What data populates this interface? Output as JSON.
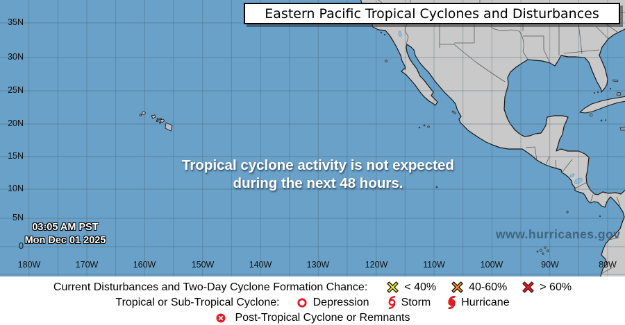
{
  "title": "Eastern Pacific Tropical Cyclones and Disturbances",
  "map": {
    "message_line1": "Tropical cyclone activity is not expected",
    "message_line2": "during the next 48 hours.",
    "timestamp_line1": "03:05 AM PST",
    "timestamp_line2": "Mon Dec 01 2025",
    "watermark": "www.hurricanes.gov",
    "lat_labels": [
      "35N",
      "30N",
      "25N",
      "20N",
      "15N",
      "10N",
      "5N",
      "0"
    ],
    "lon_labels": [
      "180W",
      "170W",
      "160W",
      "150W",
      "140W",
      "130W",
      "120W",
      "110W",
      "100W",
      "90W",
      "80W"
    ]
  },
  "colors": {
    "ocean": "#69a1c9",
    "land": "#c9c9c9",
    "low_chance": "#f7ef19",
    "medium_chance": "#f7941e",
    "high_chance": "#e31b23",
    "cyclone_red": "#e31b23"
  },
  "legend": {
    "line1_label": "Current Disturbances and Two-Day Cyclone Formation Chance:",
    "line1_items": [
      {
        "symbol": "x-mark-yellow",
        "label": "< 40%"
      },
      {
        "symbol": "x-mark-orange",
        "label": "40-60%"
      },
      {
        "symbol": "x-mark-red",
        "label": "> 60%"
      }
    ],
    "line2_label": "Tropical or Sub-Tropical Cyclone:",
    "line2_items": [
      {
        "symbol": "open-circle",
        "label": "Depression"
      },
      {
        "symbol": "storm",
        "label": "Storm"
      },
      {
        "symbol": "hurricane",
        "label": "Hurricane"
      }
    ],
    "line3_item": {
      "symbol": "post-tropical",
      "label": "Post-Tropical Cyclone or Remnants"
    }
  }
}
